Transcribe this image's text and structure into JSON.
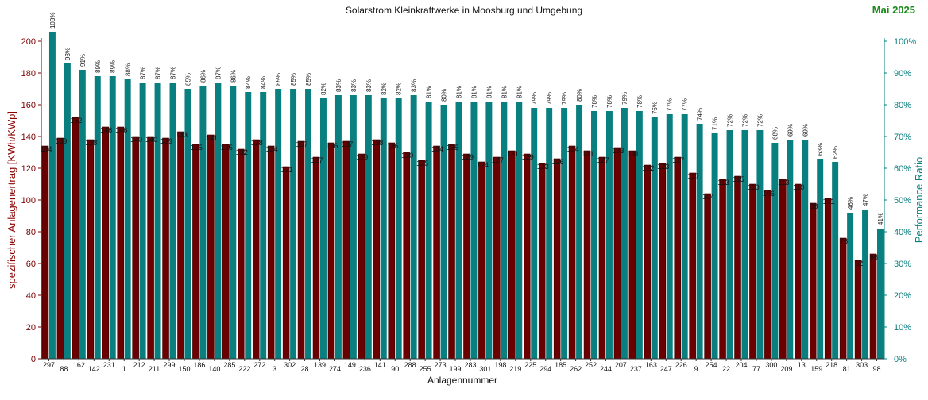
{
  "chart_data": {
    "type": "bar",
    "title": "Solarstrom Kleinkraftwerke in Moosburg und Umgebung",
    "period": "Mai 2025",
    "xlabel": "Anlagennummer",
    "ylabel_left": "spezifischer Anlagenertrag  [KWh/KWp]",
    "ylabel_right": "Performance Ratio",
    "ylim_left": [
      0,
      200
    ],
    "ylim_right": [
      0,
      100
    ],
    "yticks_left": [
      "0",
      "20",
      "40",
      "60",
      "80",
      "100",
      "120",
      "140",
      "160",
      "180",
      "200"
    ],
    "yticks_right": [
      "0%",
      "10%",
      "20%",
      "30%",
      "40%",
      "50%",
      "60%",
      "70%",
      "80%",
      "90%",
      "100%"
    ],
    "colors": {
      "yield": "#6b0000",
      "performance_ratio": "#0a7f7f",
      "axis_left": "#7a0000",
      "axis_right": "#0a7f7f",
      "period": "#1a8a1a"
    },
    "categories": [
      "297",
      "88",
      "162",
      "142",
      "231",
      "1",
      "212",
      "211",
      "299",
      "150",
      "186",
      "140",
      "285",
      "222",
      "272",
      "3",
      "302",
      "28",
      "139",
      "274",
      "149",
      "236",
      "141",
      "90",
      "288",
      "255",
      "273",
      "199",
      "283",
      "301",
      "198",
      "219",
      "225",
      "294",
      "185",
      "262",
      "252",
      "244",
      "207",
      "237",
      "163",
      "247",
      "226",
      "9",
      "254",
      "22",
      "204",
      "77",
      "300",
      "209",
      "13",
      "159",
      "218",
      "81",
      "303",
      "98"
    ],
    "series": [
      {
        "name": "spezifischer Anlagenertrag [KWh/KWp]",
        "values": [
          134,
          139,
          152,
          138,
          146,
          146,
          140,
          140,
          139,
          143,
          135,
          141,
          135,
          132,
          138,
          134,
          121,
          137,
          127,
          136,
          137,
          129,
          138,
          136,
          130,
          125,
          134,
          135,
          129,
          124,
          127,
          131,
          129,
          123,
          126,
          134,
          131,
          127,
          133,
          131,
          122,
          123,
          127,
          117,
          104,
          113,
          115,
          110,
          106,
          113,
          110,
          98,
          101,
          76,
          62,
          66
        ]
      },
      {
        "name": "Performance Ratio",
        "values": [
          103,
          93,
          91,
          89,
          89,
          88,
          87,
          87,
          87,
          85,
          86,
          87,
          86,
          84,
          84,
          85,
          85,
          85,
          82,
          83,
          83,
          83,
          82,
          82,
          83,
          81,
          80,
          81,
          81,
          81,
          81,
          81,
          79,
          79,
          79,
          80,
          78,
          78,
          79,
          78,
          76,
          77,
          77,
          74,
          71,
          72,
          72,
          72,
          68,
          69,
          69,
          63,
          62,
          46,
          47,
          41
        ],
        "labels": [
          "103%",
          "93%",
          "91%",
          "89%",
          "89%",
          "88%",
          "87%",
          "87%",
          "87%",
          "85%",
          "86%",
          "87%",
          "86%",
          "84%",
          "84%",
          "85%",
          "85%",
          "85%",
          "82%",
          "83%",
          "83%",
          "83%",
          "82%",
          "82%",
          "83%",
          "81%",
          "80%",
          "81%",
          "81%",
          "81%",
          "81%",
          "81%",
          "79%",
          "79%",
          "79%",
          "80%",
          "78%",
          "78%",
          "79%",
          "78%",
          "76%",
          "77%",
          "77%",
          "74%",
          "71%",
          "72%",
          "72%",
          "72%",
          "68%",
          "69%",
          "69%",
          "63%",
          "62%",
          "46%",
          "47%",
          "41%"
        ]
      }
    ]
  }
}
